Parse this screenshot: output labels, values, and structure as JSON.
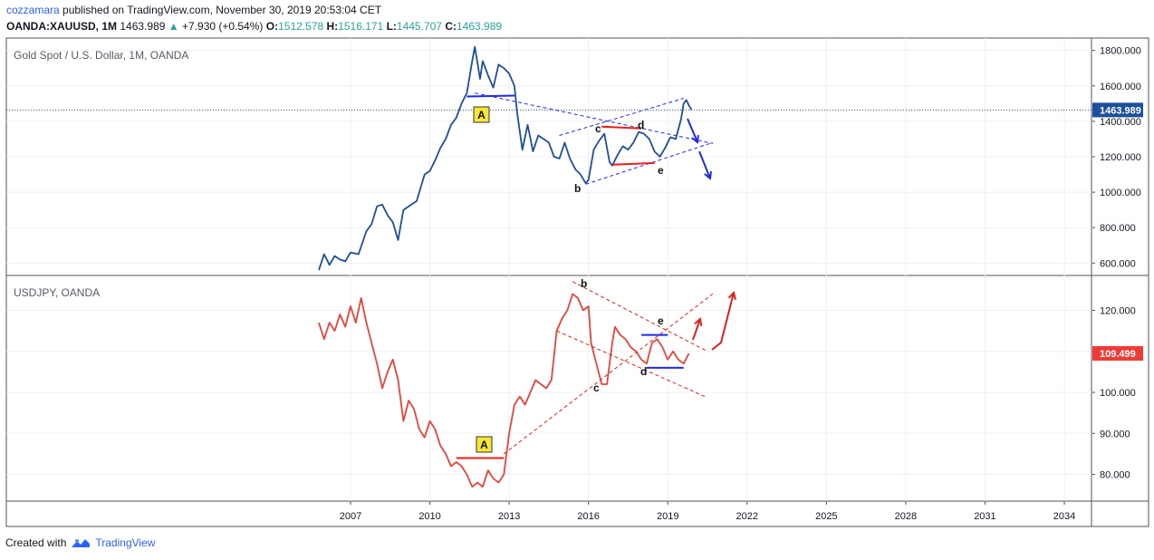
{
  "header": {
    "author": "cozzamara",
    "published_text": "published on TradingView.com, November 30, 2019 20:53:04 CET",
    "symbol": "OANDA:XAUUSD, 1M",
    "last": "1463.989",
    "change": "+7.930 (+0.54%)",
    "open_label": "O:",
    "open": "1512.578",
    "high_label": "H:",
    "high": "1516.171",
    "low_label": "L:",
    "low": "1445.707",
    "close_label": "C:",
    "close": "1463.989"
  },
  "footer": {
    "created_with": "Created with",
    "brand": "TradingView"
  },
  "colors": {
    "gold": "#1c4f9c",
    "usdjpy": "#e8443a",
    "blue_mark": "#1f2ae8",
    "red_mark": "#e3201b",
    "label_gold_bg": "#1c4f9c",
    "label_jpy_bg": "#ef3b36"
  },
  "chart_data": [
    {
      "type": "line",
      "title": "Gold Spot / U.S. Dollar, 1M, OANDA",
      "ylim": [
        530,
        1870
      ],
      "yticks": [
        600,
        800,
        1000,
        1200,
        1400,
        1600,
        1800
      ],
      "ytick_labels": [
        "600.000",
        "800.000",
        "1000.000",
        "1200.000",
        "1400.000",
        "1600.000",
        "1800.000"
      ],
      "last_value": 1463.989,
      "last_label": "1463.989",
      "series": [
        {
          "x": [
            2005.8,
            2006.0,
            2006.2,
            2006.4,
            2006.6,
            2006.8,
            2007.0,
            2007.3,
            2007.6,
            2007.8,
            2008.0,
            2008.2,
            2008.4,
            2008.6,
            2008.8,
            2009.0,
            2009.2,
            2009.5,
            2009.8,
            2010.0,
            2010.2,
            2010.4,
            2010.6,
            2010.8,
            2011.0,
            2011.2,
            2011.4,
            2011.6,
            2011.7,
            2011.9,
            2012.0,
            2012.2,
            2012.4,
            2012.6,
            2012.8,
            2013.0,
            2013.2,
            2013.3,
            2013.5,
            2013.7,
            2013.9,
            2014.1,
            2014.3,
            2014.5,
            2014.7,
            2014.9,
            2015.1,
            2015.3,
            2015.5,
            2015.7,
            2015.9,
            2016.0,
            2016.2,
            2016.4,
            2016.6,
            2016.8,
            2016.9,
            2017.1,
            2017.3,
            2017.5,
            2017.7,
            2017.9,
            2018.1,
            2018.3,
            2018.5,
            2018.7,
            2018.9,
            2019.1,
            2019.3,
            2019.5,
            2019.6,
            2019.7,
            2019.8,
            2019.9
          ],
          "y": [
            560,
            650,
            590,
            640,
            620,
            610,
            660,
            650,
            780,
            820,
            920,
            930,
            870,
            830,
            730,
            900,
            920,
            950,
            1100,
            1120,
            1180,
            1250,
            1300,
            1380,
            1420,
            1500,
            1560,
            1740,
            1820,
            1640,
            1740,
            1660,
            1590,
            1720,
            1700,
            1670,
            1600,
            1450,
            1240,
            1380,
            1230,
            1320,
            1300,
            1280,
            1200,
            1190,
            1280,
            1190,
            1130,
            1100,
            1050,
            1070,
            1240,
            1290,
            1330,
            1170,
            1150,
            1210,
            1260,
            1240,
            1280,
            1340,
            1330,
            1300,
            1230,
            1200,
            1250,
            1310,
            1300,
            1410,
            1500,
            1520,
            1490,
            1464
          ]
        }
      ]
    },
    {
      "type": "line",
      "title": "USDJPY, OANDA",
      "ylim": [
        73.5,
        128.5
      ],
      "yticks": [
        80,
        90,
        100,
        110,
        120
      ],
      "ytick_labels": [
        "80.000",
        "90.000",
        "100.000",
        "110.000",
        "120.000"
      ],
      "last_value": 109.499,
      "last_label": "109.499",
      "series": [
        {
          "x": [
            2005.8,
            2006.0,
            2006.2,
            2006.4,
            2006.6,
            2006.8,
            2007.0,
            2007.2,
            2007.4,
            2007.6,
            2007.8,
            2008.0,
            2008.2,
            2008.4,
            2008.6,
            2008.8,
            2009.0,
            2009.2,
            2009.4,
            2009.6,
            2009.8,
            2010.0,
            2010.2,
            2010.4,
            2010.6,
            2010.8,
            2011.0,
            2011.2,
            2011.4,
            2011.6,
            2011.8,
            2012.0,
            2012.2,
            2012.4,
            2012.6,
            2012.8,
            2013.0,
            2013.2,
            2013.4,
            2013.6,
            2013.8,
            2014.0,
            2014.2,
            2014.4,
            2014.6,
            2014.8,
            2015.0,
            2015.2,
            2015.4,
            2015.6,
            2015.8,
            2016.0,
            2016.1,
            2016.3,
            2016.5,
            2016.7,
            2016.9,
            2017.0,
            2017.2,
            2017.4,
            2017.6,
            2017.8,
            2018.0,
            2018.2,
            2018.4,
            2018.6,
            2018.8,
            2019.0,
            2019.2,
            2019.4,
            2019.6,
            2019.8
          ],
          "y": [
            117,
            113,
            117,
            115,
            119,
            116,
            121,
            117,
            123,
            117,
            112,
            107,
            101,
            105,
            108,
            103,
            93,
            98,
            96,
            91,
            89,
            93,
            91,
            87,
            85,
            82,
            83,
            82,
            80,
            77,
            78,
            77,
            81,
            79,
            78,
            80,
            90,
            97,
            99,
            97,
            100,
            103,
            102,
            101,
            103,
            115,
            118,
            120,
            124,
            123,
            120,
            121,
            112,
            107,
            102,
            102,
            112,
            116,
            114,
            113,
            111,
            110,
            108,
            107,
            112,
            113,
            111,
            108,
            110,
            108,
            107,
            109.5
          ]
        }
      ]
    }
  ],
  "xaxis": {
    "ticks": [
      2007,
      2010,
      2013,
      2016,
      2019,
      2022,
      2025,
      2028,
      2031,
      2034
    ],
    "tick_labels": [
      "2007",
      "2010",
      "2013",
      "2016",
      "2019",
      "2022",
      "2025",
      "2028",
      "2031",
      "2034"
    ]
  },
  "annotations": {
    "gold_wave_labels": [
      "c",
      "d",
      "b",
      "e"
    ],
    "gold_box_label": "A",
    "jpy_wave_labels": [
      "b",
      "e",
      "d",
      "c"
    ],
    "jpy_box_label": "A"
  }
}
